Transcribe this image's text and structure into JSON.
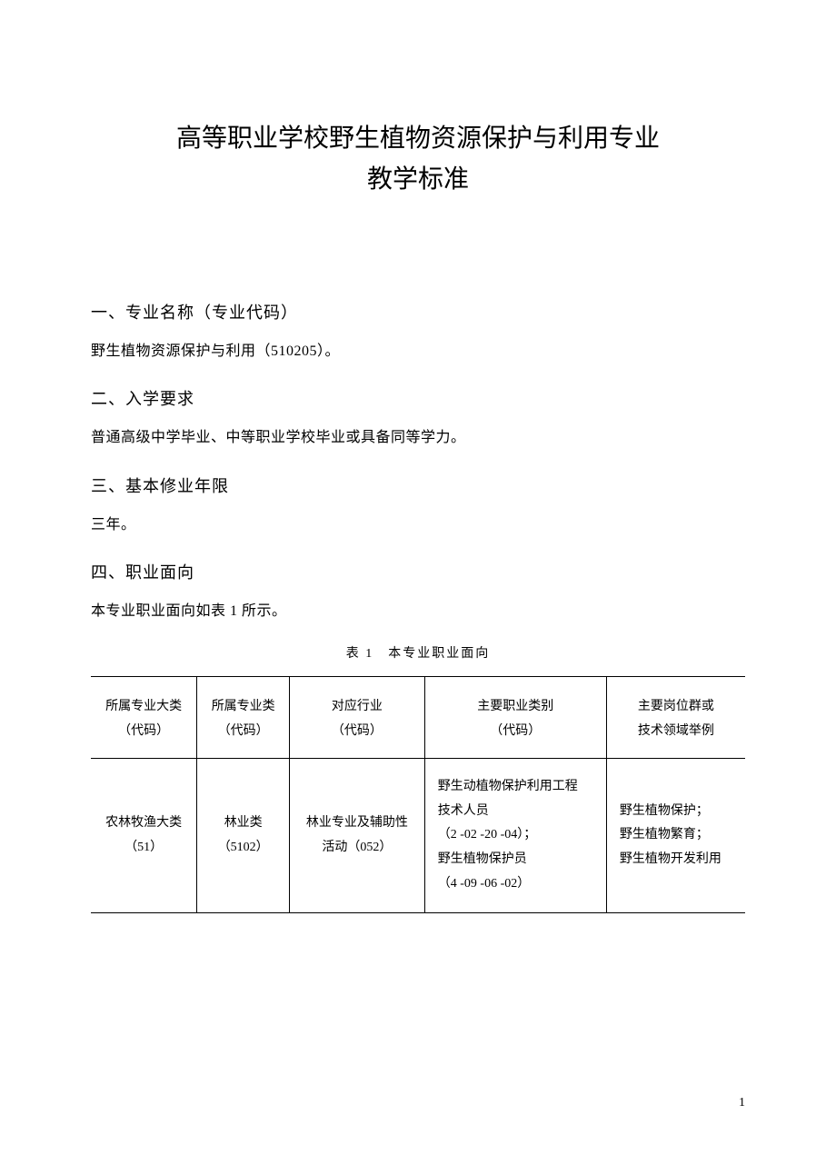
{
  "title_line1": "高等职业学校野生植物资源保护与利用专业",
  "title_line2": "教学标准",
  "sections": {
    "s1_heading": "一、专业名称（专业代码）",
    "s1_body": "野生植物资源保护与利用（510205）。",
    "s2_heading": "二、入学要求",
    "s2_body": "普通高级中学毕业、中等职业学校毕业或具备同等学力。",
    "s3_heading": "三、基本修业年限",
    "s3_body": "三年。",
    "s4_heading": "四、职业面向",
    "s4_body": "本专业职业面向如表 1 所示。"
  },
  "table": {
    "caption": "表 1　本专业职业面向",
    "headers": {
      "h1a": "所属专业大类",
      "h1b": "（代码）",
      "h2a": "所属专业类",
      "h2b": "（代码）",
      "h3a": "对应行业",
      "h3b": "（代码）",
      "h4a": "主要职业类别",
      "h4b": "（代码）",
      "h5a": "主要岗位群或",
      "h5b": "技术领域举例"
    },
    "row": {
      "c1a": "农林牧渔大类",
      "c1b": "（51）",
      "c2a": "林业类",
      "c2b": "（5102）",
      "c3a": "林业专业及辅助性",
      "c3b": "活动（052）",
      "c4a": "野生动植物保护利用工程",
      "c4b": "技术人员",
      "c4c": "（2 -02 -20 -04）；",
      "c4d": "野生植物保护员",
      "c4e": "（4 -09 -06 -02）",
      "c5a": "野生植物保护；",
      "c5b": "野生植物繁育；",
      "c5c": "野生植物开发利用"
    }
  },
  "page_number": "1"
}
